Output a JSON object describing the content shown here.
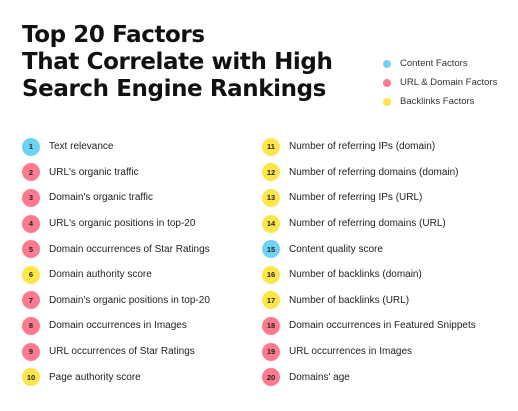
{
  "title": {
    "line1": "Top 20 Factors",
    "line2": "That Correlate with High",
    "line3": "Search Engine Rankings"
  },
  "colors": {
    "content": "#6cd3f3",
    "url_domain": "#fb7a8e",
    "backlinks": "#fde64a"
  },
  "legend": [
    {
      "label": "Content Factors",
      "category": "content"
    },
    {
      "label": "URL & Domain Factors",
      "category": "url_domain"
    },
    {
      "label": "Backlinks Factors",
      "category": "backlinks"
    }
  ],
  "factors": [
    {
      "rank": "1",
      "label": "Text relevance",
      "category": "content"
    },
    {
      "rank": "2",
      "label": "URL's organic traffic",
      "category": "url_domain"
    },
    {
      "rank": "3",
      "label": "Domain's organic traffic",
      "category": "url_domain"
    },
    {
      "rank": "4",
      "label": "URL's organic positions in top-20",
      "category": "url_domain"
    },
    {
      "rank": "5",
      "label": "Domain occurrences of Star Ratings",
      "category": "url_domain"
    },
    {
      "rank": "6",
      "label": "Domain authority score",
      "category": "backlinks"
    },
    {
      "rank": "7",
      "label": "Domain's organic positions in top-20",
      "category": "url_domain"
    },
    {
      "rank": "8",
      "label": "Domain occurrences in Images",
      "category": "url_domain"
    },
    {
      "rank": "9",
      "label": "URL occurrences of Star Ratings",
      "category": "url_domain"
    },
    {
      "rank": "10",
      "label": "Page authority score",
      "category": "backlinks"
    },
    {
      "rank": "11",
      "label": "Number of referring IPs (domain)",
      "category": "backlinks"
    },
    {
      "rank": "12",
      "label": "Number of referring domains (domain)",
      "category": "backlinks"
    },
    {
      "rank": "13",
      "label": "Number of referring IPs (URL)",
      "category": "backlinks"
    },
    {
      "rank": "14",
      "label": "Number of referring domains (URL)",
      "category": "backlinks"
    },
    {
      "rank": "15",
      "label": "Content quality score",
      "category": "content"
    },
    {
      "rank": "16",
      "label": "Number of backlinks (domain)",
      "category": "backlinks"
    },
    {
      "rank": "17",
      "label": "Number of backlinks (URL)",
      "category": "backlinks"
    },
    {
      "rank": "18",
      "label": "Domain occurrences in Featured Snippets",
      "category": "url_domain"
    },
    {
      "rank": "19",
      "label": "URL occurrences in Images",
      "category": "url_domain"
    },
    {
      "rank": "20",
      "label": "Domains' age",
      "category": "url_domain"
    }
  ]
}
